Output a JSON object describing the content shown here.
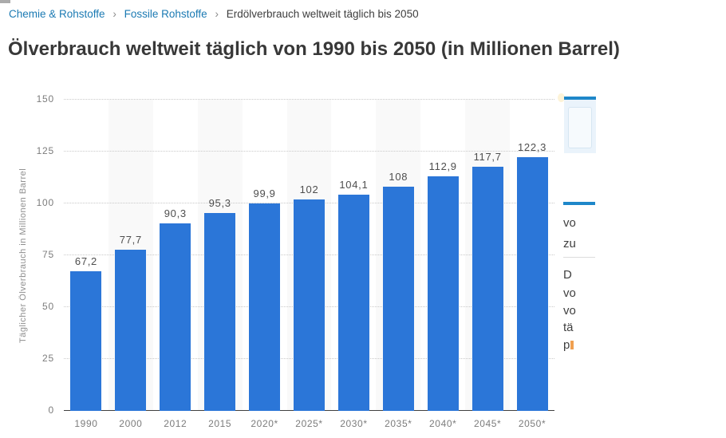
{
  "breadcrumb": {
    "separator": "›",
    "items": [
      {
        "label": "Chemie & Rohstoffe",
        "type": "link"
      },
      {
        "label": "Fossile Rohstoffe",
        "type": "link"
      },
      {
        "label": "Erdölverbrauch weltweit täglich bis 2050",
        "type": "current"
      }
    ]
  },
  "title": "Ölverbrauch weltweit täglich von 1990 bis 2050 (in Millionen Barrel)",
  "chart_data": {
    "type": "bar",
    "title": "Ölverbrauch weltweit täglich von 1990 bis 2050 (in Millionen Barrel)",
    "categories": [
      "1990",
      "2000",
      "2012",
      "2015",
      "2020*",
      "2025*",
      "2030*",
      "2035*",
      "2040*",
      "2045*",
      "2050*"
    ],
    "values": [
      67.2,
      77.7,
      90.3,
      95.3,
      99.9,
      102,
      104.1,
      108,
      112.9,
      117.7,
      122.3
    ],
    "value_labels": [
      "67,2",
      "77,7",
      "90,3",
      "95,3",
      "99,9",
      "102",
      "104,1",
      "108",
      "112,9",
      "117,7",
      "122,3"
    ],
    "xlabel": "",
    "ylabel": "Täglicher Ölverbrauch in Millionen Barrel",
    "ylim": [
      0,
      150
    ],
    "yticks": [
      0,
      25,
      50,
      75,
      100,
      125,
      150
    ],
    "grid": "horizontal-dotted",
    "legend": "none",
    "bar_color": "#2b76d8",
    "band_color": "#f9f9f9"
  },
  "sidebar": {
    "paragraph_top_fragments": [
      "vo",
      "zu"
    ],
    "paragraph_bottom_fragments": [
      "D",
      "vo",
      "vo",
      "tä",
      "p"
    ]
  },
  "colors": {
    "accent_blue": "#1e87c9",
    "bar_blue": "#2b76d8",
    "band_gray": "#f9f9f9",
    "breadcrumb_link_blue": "#1b7ab3",
    "panel_bg_blue": "#eaf3fb",
    "link_orange": "#f0a050"
  }
}
